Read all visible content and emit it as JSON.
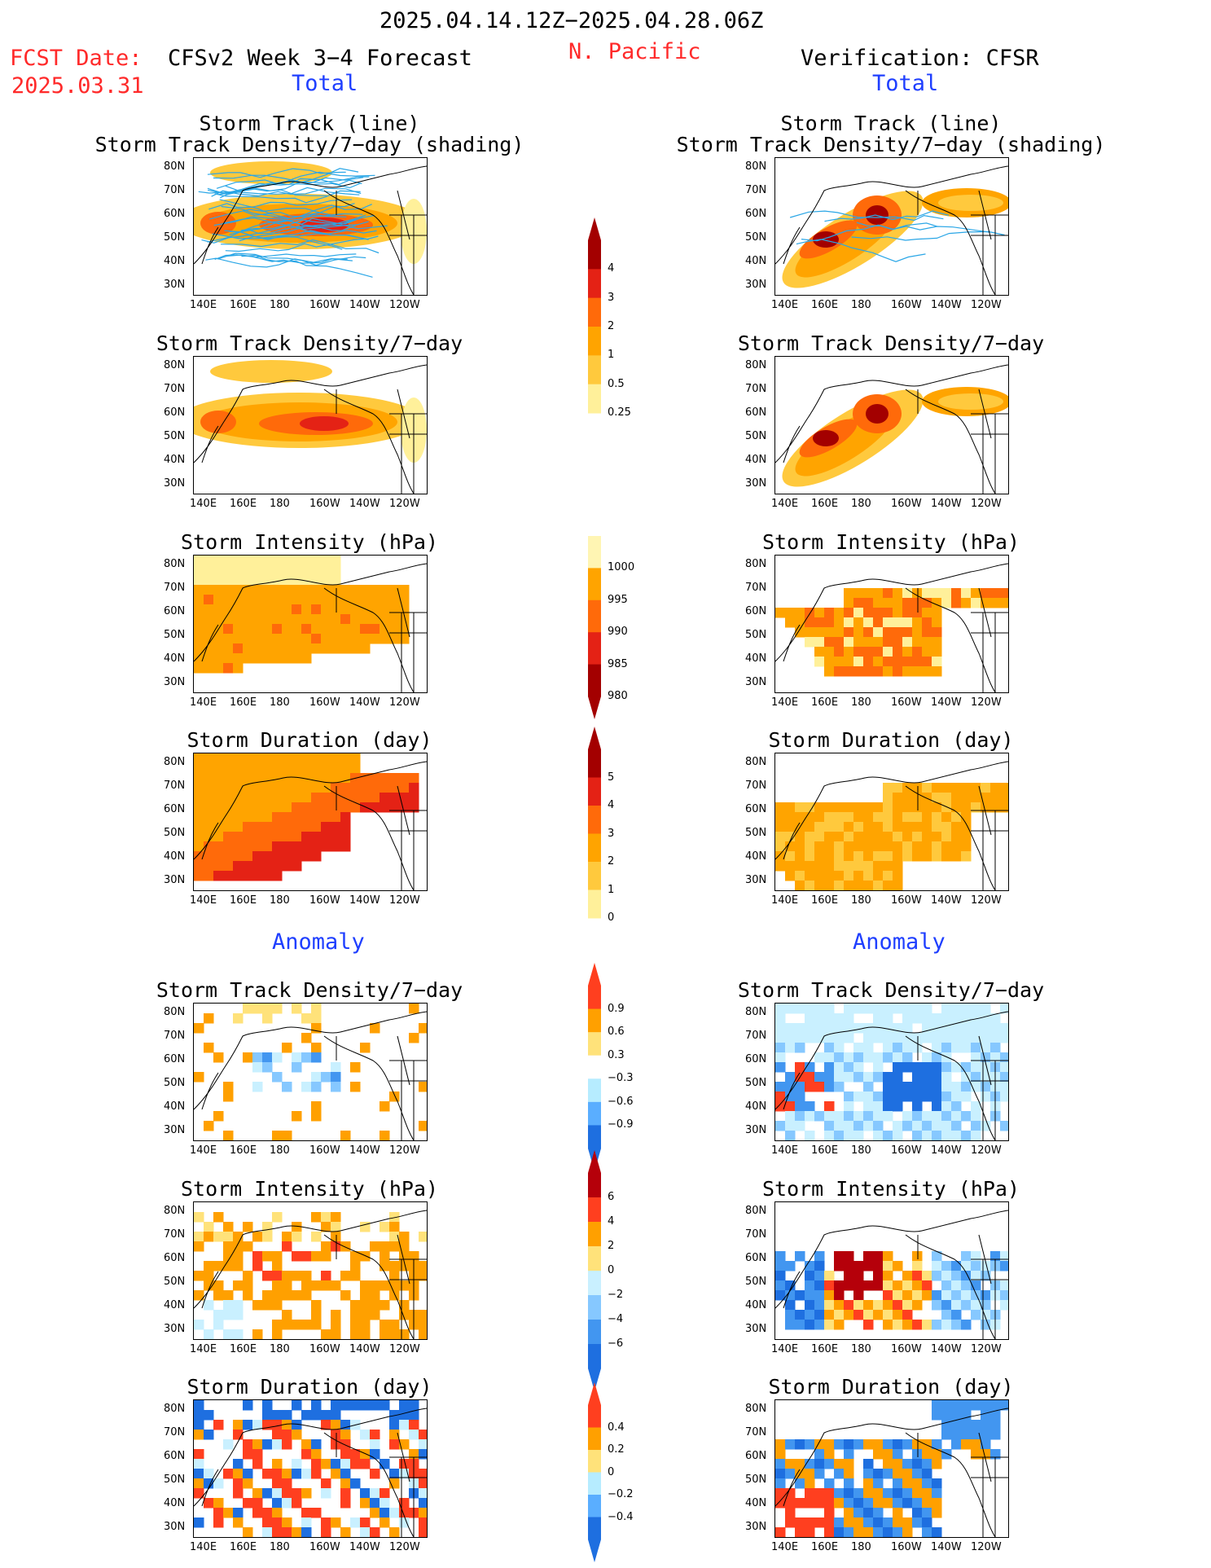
{
  "header": {
    "date_range": "2025.04.14.12Z−2025.04.28.06Z",
    "region": "N. Pacific",
    "fcst_date_label": "FCST Date:",
    "fcst_date_value": "2025.03.31",
    "model_title": "CFSv2 Week 3−4 Forecast",
    "verification_title": "Verification: CFSR"
  },
  "section_labels": {
    "total": "Total",
    "anomaly": "Anomaly"
  },
  "axes": {
    "lat_labels": [
      "80N",
      "70N",
      "60N",
      "50N",
      "40N",
      "30N"
    ],
    "lon_labels": [
      "140E",
      "160E",
      "180",
      "160W",
      "140W",
      "120W"
    ]
  },
  "panel_titles": {
    "storm_track_line": "Storm Track (line)",
    "storm_track_shading": "Storm Track Density/7−day (shading)",
    "density": "Storm Track Density/7−day",
    "intensity": "Storm Intensity (hPa)",
    "duration": "Storm Duration (day)"
  },
  "colorbars": {
    "density": {
      "labels": [
        "4",
        "3",
        "2",
        "1",
        "0.5",
        "0.25"
      ],
      "colors": [
        "#a30000",
        "#e42215",
        "#ff6a0a",
        "#ffa400",
        "#ffc93d",
        "#fff09a"
      ]
    },
    "intensity": {
      "labels": [
        "1000",
        "995",
        "990",
        "985",
        "980"
      ],
      "colors": [
        "#fff5b3",
        "#ffa400",
        "#ff6a0a",
        "#e42215",
        "#a30000"
      ]
    },
    "duration": {
      "labels": [
        "5",
        "4",
        "3",
        "2",
        "1",
        "0"
      ],
      "colors": [
        "#a30000",
        "#e42215",
        "#ff6a0a",
        "#ffa400",
        "#ffc93d",
        "#fff09a"
      ]
    },
    "density_anom": {
      "labels": [
        "0.9",
        "0.6",
        "0.3",
        "−0.3",
        "−0.6",
        "−0.9"
      ],
      "colors": [
        "#ff3f1f",
        "#ffa000",
        "#ffe27a",
        "#ffffff",
        "#b6ecff",
        "#5aaeff",
        "#1e6fe0"
      ]
    },
    "intensity_anom": {
      "labels": [
        "6",
        "4",
        "2",
        "0",
        "−2",
        "−4",
        "−6"
      ],
      "colors": [
        "#b5000a",
        "#ff3f1f",
        "#ffa000",
        "#ffe27a",
        "#c9f0ff",
        "#86c8ff",
        "#4296f0",
        "#1e6fe0"
      ]
    },
    "duration_anom": {
      "labels": [
        "0.4",
        "0.2",
        "0",
        "−0.2",
        "−0.4"
      ],
      "colors": [
        "#ff3f1f",
        "#ffa000",
        "#ffe27a",
        "#b6ecff",
        "#5aaeff",
        "#1e6fe0"
      ]
    }
  }
}
